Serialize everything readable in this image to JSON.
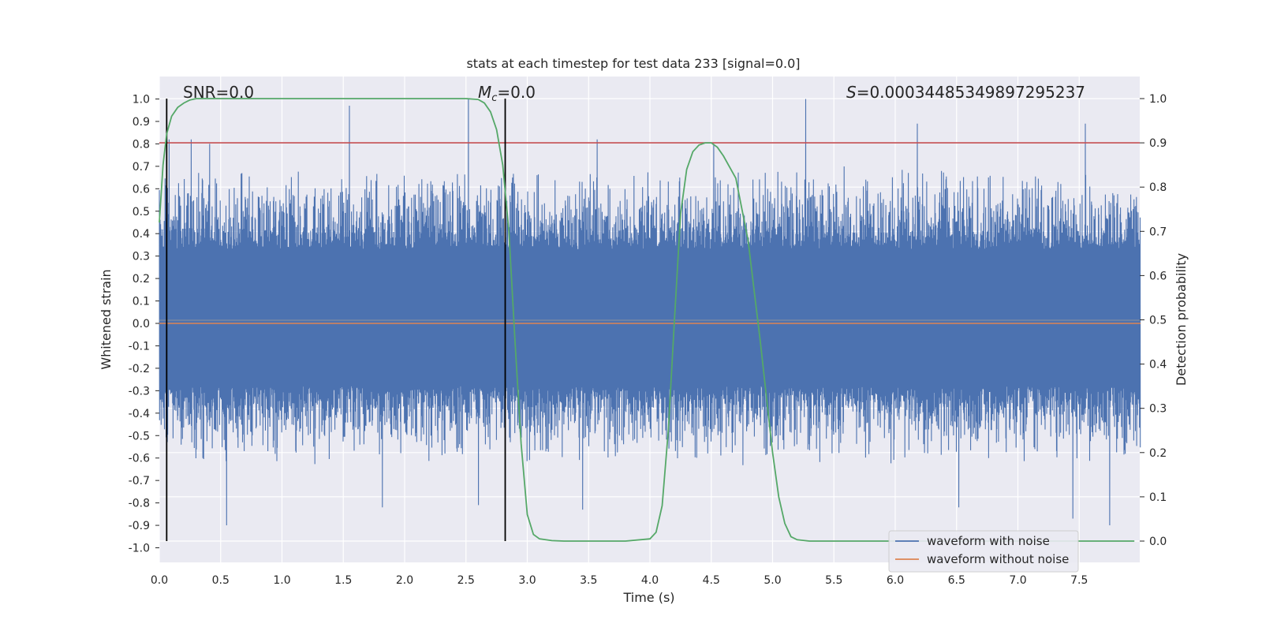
{
  "chart_data": {
    "type": "line",
    "title": "stats at each timestep for test data 233 [signal=0.0]",
    "xlabel": "Time (s)",
    "ylabel": "Whitened strain",
    "y2label": "Detection probability",
    "xlim": [
      0.0,
      8.0
    ],
    "ylim": [
      -1.07,
      1.07
    ],
    "y2lim": [
      -0.047,
      1.047
    ],
    "xticks": [
      "0.0",
      "0.5",
      "1.0",
      "1.5",
      "2.0",
      "2.5",
      "3.0",
      "3.5",
      "4.0",
      "4.5",
      "5.0",
      "5.5",
      "6.0",
      "6.5",
      "7.0",
      "7.5"
    ],
    "yticks": [
      "1.0",
      "0.9",
      "0.8",
      "0.7",
      "0.6",
      "0.5",
      "0.4",
      "0.3",
      "0.2",
      "0.1",
      "0.0",
      "-0.1",
      "-0.2",
      "-0.3",
      "-0.4",
      "-0.5",
      "-0.6",
      "-0.7",
      "-0.8",
      "-0.9",
      "-1.0"
    ],
    "y2ticks": [
      "1.0",
      "0.9",
      "0.8",
      "0.7",
      "0.6",
      "0.5",
      "0.4",
      "0.3",
      "0.2",
      "0.1",
      "0.0"
    ],
    "annotations": {
      "snr": "SNR=0.0",
      "mc_symbol": "M",
      "mc_sub": "c",
      "mc_value": "=0.0",
      "s_symbol": "S",
      "s_value": "=0.00034485349897295237"
    },
    "threshold": {
      "value": 0.9,
      "axis": "right",
      "color": "#c44e52"
    },
    "vertical_markers": [
      0.06,
      2.82
    ],
    "series": [
      {
        "name": "waveform with noise",
        "color": "#4c72b0",
        "amplitude_range": [
          -0.9,
          1.0
        ],
        "peaks": [
          {
            "x": 0.08,
            "y": 0.82
          },
          {
            "x": 0.26,
            "y": 0.82
          },
          {
            "x": 0.41,
            "y": 0.8
          },
          {
            "x": 1.55,
            "y": 0.97
          },
          {
            "x": 2.52,
            "y": 1.0
          },
          {
            "x": 2.88,
            "y": 0.65
          },
          {
            "x": 3.57,
            "y": 0.82
          },
          {
            "x": 4.52,
            "y": 0.8
          },
          {
            "x": 5.27,
            "y": 1.0
          },
          {
            "x": 6.18,
            "y": 0.89
          },
          {
            "x": 7.55,
            "y": 0.89
          },
          {
            "x": 0.55,
            "y": -0.91
          },
          {
            "x": 1.82,
            "y": -0.82
          },
          {
            "x": 2.6,
            "y": -0.81
          },
          {
            "x": 3.45,
            "y": -0.83
          },
          {
            "x": 6.52,
            "y": -0.82
          },
          {
            "x": 7.45,
            "y": -0.87
          },
          {
            "x": 7.75,
            "y": -0.99
          }
        ]
      },
      {
        "name": "waveform without noise",
        "color": "#dd8452",
        "x": [
          0.0,
          8.0
        ],
        "y": [
          0.0,
          0.0
        ]
      },
      {
        "name": "detection probability",
        "color": "#55a868",
        "axis": "right",
        "x": [
          0.0,
          0.03,
          0.06,
          0.1,
          0.15,
          0.2,
          0.25,
          0.3,
          0.35,
          0.4,
          0.5,
          1.0,
          1.5,
          2.0,
          2.5,
          2.6,
          2.65,
          2.7,
          2.75,
          2.8,
          2.85,
          2.9,
          2.95,
          3.0,
          3.05,
          3.1,
          3.2,
          3.3,
          3.5,
          3.8,
          4.0,
          4.05,
          4.1,
          4.15,
          4.2,
          4.25,
          4.3,
          4.35,
          4.4,
          4.45,
          4.5,
          4.55,
          4.6,
          4.7,
          4.8,
          4.9,
          5.0,
          5.05,
          5.1,
          5.15,
          5.2,
          5.3,
          5.5,
          6.0,
          7.0,
          7.95
        ],
        "y": [
          0.72,
          0.85,
          0.92,
          0.96,
          0.98,
          0.99,
          0.997,
          1.0,
          1.0,
          1.0,
          1.0,
          1.0,
          1.0,
          1.0,
          1.0,
          0.998,
          0.99,
          0.97,
          0.93,
          0.85,
          0.7,
          0.45,
          0.22,
          0.06,
          0.015,
          0.005,
          0.001,
          0.0,
          0.0,
          0.0,
          0.005,
          0.02,
          0.08,
          0.25,
          0.5,
          0.74,
          0.84,
          0.88,
          0.895,
          0.9,
          0.9,
          0.89,
          0.87,
          0.82,
          0.68,
          0.45,
          0.2,
          0.1,
          0.04,
          0.01,
          0.003,
          0.0,
          0.0,
          0.0,
          0.0,
          0.0
        ]
      }
    ],
    "legend": {
      "placement": "lower-right",
      "entries": [
        "waveform with noise",
        "waveform without noise"
      ]
    }
  }
}
